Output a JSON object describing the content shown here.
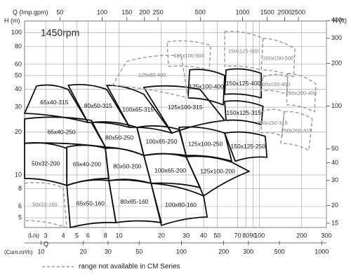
{
  "chart_data": {
    "type": "region",
    "title": "1450rpm",
    "top_axis_label": "Q (Imp.gpm)",
    "ylabel": "H (m)",
    "y2label": "H (ft)",
    "xlabel_symbol": "Q",
    "xlabel": "(L/s)",
    "x2label": "(Cum.m³/h)",
    "legend_text": "range not available in CM Series",
    "log_scale": true,
    "grid": true,
    "xlim": [
      2.12,
      300
    ],
    "xticks": [
      3,
      4,
      5,
      6,
      8,
      10,
      20,
      30,
      40,
      50,
      70,
      80,
      90,
      100,
      200,
      300
    ],
    "x2lim": [
      7.63,
      1080
    ],
    "x2ticks": [
      10,
      20,
      30,
      50,
      100,
      200,
      300,
      500,
      1000
    ],
    "x3lim": [
      28,
      3960
    ],
    "x3ticks": [
      50,
      100,
      150,
      200,
      250,
      500,
      1000,
      1500,
      2000,
      2500
    ],
    "ylim": [
      4.27,
      121
    ],
    "yticks": [
      5,
      6,
      8,
      10,
      20,
      30,
      40,
      50,
      60,
      80,
      100
    ],
    "y2lim": [
      14,
      397
    ],
    "y2ticks": [
      15,
      20,
      30,
      40,
      50,
      100,
      200,
      300,
      400
    ],
    "regions": [
      {
        "name": "65x40-315",
        "dashed": false,
        "q": [
          2.58,
          4.34,
          5.99,
          2.12
        ],
        "h": [
          42.2,
          39.9,
          23.4,
          27.1
        ]
      },
      {
        "name": "80x50-315",
        "dashed": false,
        "q": [
          4.34,
          8.17,
          11.9,
          5.99
        ],
        "h": [
          42.7,
          39.9,
          21.6,
          23.4
        ]
      },
      {
        "name": "100x65-315",
        "dashed": false,
        "q": [
          8.17,
          15.0,
          23.8,
          11.9
        ],
        "h": [
          42.7,
          36.9,
          19.7,
          21.6
        ]
      },
      {
        "name": "125x100-315",
        "dashed": false,
        "q": [
          15.0,
          37.8,
          56.5,
          23.8
        ],
        "h": [
          41.3,
          39.9,
          24.2,
          19.7
        ]
      },
      {
        "name": "150x125-315",
        "dashed": false,
        "q": [
          56.5,
          106,
          103,
          57.8
        ],
        "h": [
          32.9,
          30.4,
          22.6,
          24.2
        ]
      },
      {
        "name": "125x100-400",
        "dashed": false,
        "q": [
          31.8,
          56.5,
          55.2,
          31.0
        ],
        "h": [
          54.8,
          50.1,
          31.1,
          34.8
        ]
      },
      {
        "name": "150x125-400",
        "dashed": false,
        "q": [
          57.8,
          103,
          103,
          56.5
        ],
        "h": [
          54.8,
          51.8,
          34.8,
          36.9
        ]
      },
      {
        "name": "125x80-400",
        "dashed": true,
        "q": [
          11.3,
          27.7,
          31.0,
          8.96
        ],
        "h": [
          62.8,
          68.8,
          34.8,
          42.7
        ]
      },
      {
        "name": "125x100-500",
        "dashed": true,
        "q": [
          22.0,
          44.9,
          43.9,
          22.5
        ],
        "h": [
          86.3,
          81.5,
          54.8,
          58.0
        ]
      },
      {
        "name": "150x125-500",
        "dashed": true,
        "q": [
          56.5,
          106,
          103,
          56.5
        ],
        "h": [
          102,
          91.3,
          54.8,
          58.0
        ]
      },
      {
        "name": "200x150-500",
        "dashed": true,
        "q": [
          106,
          179,
          175,
          103
        ],
        "h": [
          91.3,
          77.0,
          48.9,
          54.8
        ]
      },
      {
        "name": "200x150-400",
        "dashed": true,
        "q": [
          106,
          159,
          156,
          103
        ],
        "h": [
          48.9,
          48.9,
          36.9,
          39.0
        ]
      },
      {
        "name": "250x200-400",
        "dashed": true,
        "q": [
          159,
          252,
          247,
          156
        ],
        "h": [
          51.8,
          43.7,
          27.8,
          31.1
        ]
      },
      {
        "name": "200x150-315",
        "dashed": true,
        "q": [
          103,
          150,
          145,
          103
        ],
        "h": [
          27.8,
          27.8,
          18.7,
          19.7
        ]
      },
      {
        "name": "250x200-315",
        "dashed": true,
        "q": [
          150,
          238,
          225,
          142
        ],
        "h": [
          27.8,
          24.8,
          14.9,
          16.7
        ]
      },
      {
        "name": "65x40-250",
        "dashed": false,
        "q": [
          2.12,
          6.34,
          7.98,
          2.12
        ],
        "h": [
          24.8,
          24.2,
          15.7,
          16.7
        ]
      },
      {
        "name": "80x50-250",
        "dashed": false,
        "q": [
          6.34,
          13.4,
          15.0,
          7.98
        ],
        "h": [
          23.4,
          21.6,
          13.7,
          15.7
        ]
      },
      {
        "name": "100x65-250",
        "dashed": false,
        "q": [
          13.4,
          26.7,
          30,
          15.0
        ],
        "h": [
          21.6,
          20.9,
          13.7,
          13.7
        ]
      },
      {
        "name": "125x100-250",
        "dashed": false,
        "q": [
          26.7,
          56.5,
          63.4,
          30
        ],
        "h": [
          21.6,
          19.7,
          12.5,
          13.7
        ]
      },
      {
        "name": "150x125-250",
        "dashed": false,
        "q": [
          56.5,
          110,
          113,
          67.2
        ],
        "h": [
          19.7,
          18.7,
          13.3,
          12.5
        ]
      },
      {
        "name": "50x32-200",
        "dashed": false,
        "q": [
          2.12,
          4.24,
          4.24,
          2.12
        ],
        "h": [
          16.7,
          15.4,
          8.44,
          9.45
        ]
      },
      {
        "name": "65x40-200",
        "dashed": false,
        "q": [
          4.24,
          7.98,
          8.45,
          4.24
        ],
        "h": [
          15.7,
          15.4,
          9.45,
          8.44
        ]
      },
      {
        "name": "80x50-200",
        "dashed": false,
        "q": [
          7.98,
          15.0,
          16.9,
          8.45
        ],
        "h": [
          15.4,
          13.7,
          8.73,
          9.13
        ]
      },
      {
        "name": "100x65-200",
        "dashed": false,
        "q": [
          15.0,
          30,
          37.8,
          16.9
        ],
        "h": [
          13.7,
          13.4,
          8.15,
          8.73
        ]
      },
      {
        "name": "125x100-200",
        "dashed": false,
        "q": [
          30,
          63.4,
          84.5,
          40.0
        ],
        "h": [
          13.4,
          12.3,
          10.6,
          7.12
        ]
      },
      {
        "name": "50x32-160",
        "dashed": true,
        "q": [
          2.12,
          4.0,
          4.24,
          2.12
        ],
        "h": [
          8.73,
          8.15,
          4.27,
          4.78
        ]
      },
      {
        "name": "65x50-160",
        "dashed": false,
        "q": [
          4.24,
          8.45,
          9.49,
          4.49
        ],
        "h": [
          8.44,
          9.13,
          4.62,
          4.27
        ]
      },
      {
        "name": "80x65-160",
        "dashed": false,
        "q": [
          8.45,
          16.9,
          20.0,
          9.49
        ],
        "h": [
          9.13,
          8.73,
          4.62,
          4.62
        ]
      },
      {
        "name": "100x80-160",
        "dashed": false,
        "q": [
          16.9,
          40.0,
          42.4,
          20.0
        ],
        "h": [
          8.73,
          7.12,
          5.06,
          4.42
        ]
      }
    ]
  }
}
